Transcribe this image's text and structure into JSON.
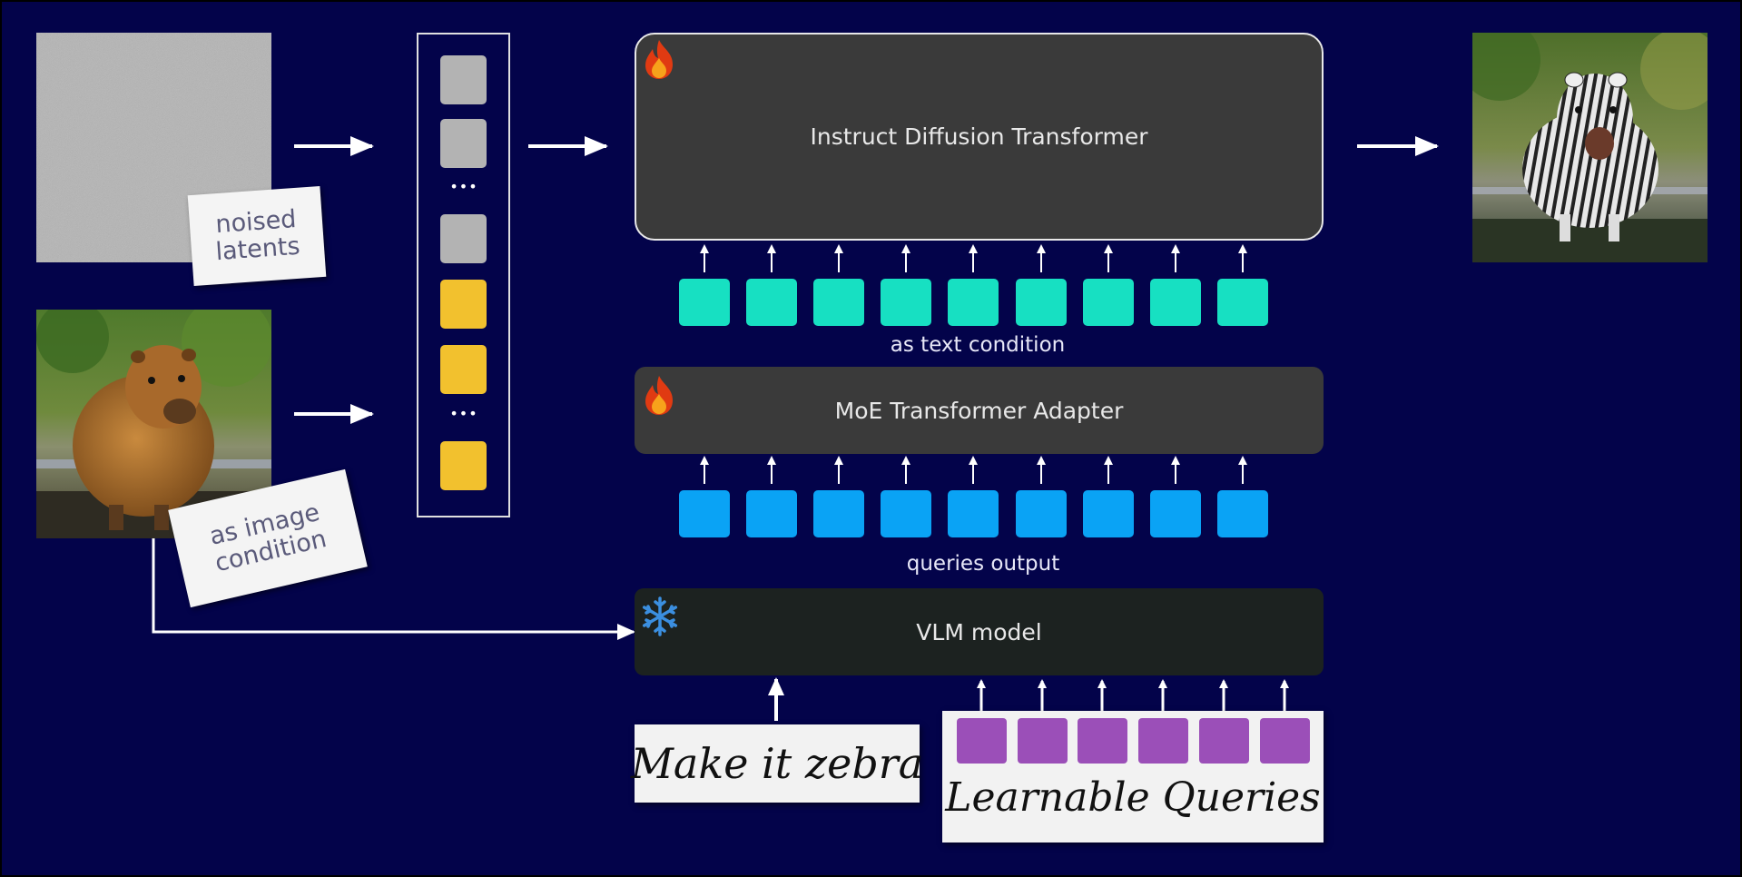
{
  "blocks": {
    "dit": "Instruct Diffusion Transformer",
    "moe": "MoE Transformer Adapter",
    "vlm": "VLM model"
  },
  "captions": {
    "text_condition": "as text condition",
    "queries_output": "queries output"
  },
  "notes": {
    "noised_latents": "noised\nlatents",
    "image_condition": "as image\ncondition"
  },
  "labels": {
    "instruction": "Make it zebra",
    "learnable_queries": "Learnable Queries"
  },
  "colors": {
    "background": "#03034a",
    "block_dark": "#3a3a3a",
    "vlm_block": "#1c2220",
    "text_token": "#17e0c2",
    "query_output_token": "#0aa3f5",
    "learnable_query_token": "#9b4fb8",
    "latent_token": "#b3b3b3",
    "image_token": "#f2c12e"
  },
  "icons": {
    "trainable": "fire-icon",
    "frozen": "snowflake-icon"
  }
}
